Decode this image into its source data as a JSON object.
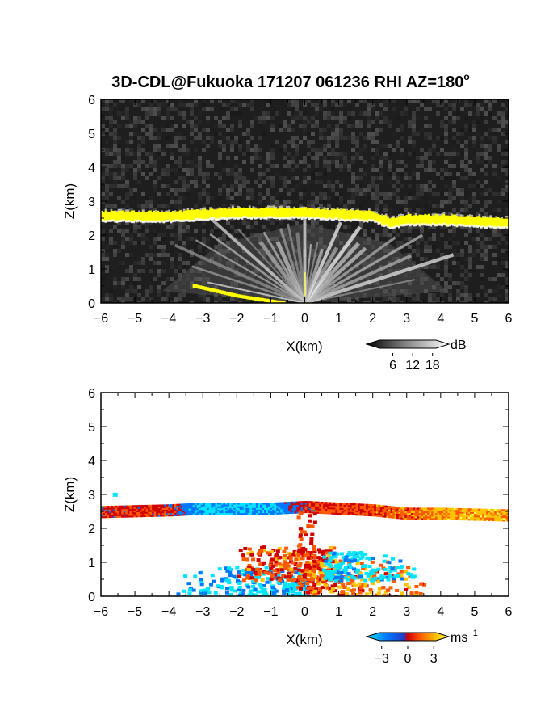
{
  "title_main": "3D-CDL@Fukuoka 171207 061236 RHI AZ=180",
  "title_sup": "o",
  "chart_data": [
    {
      "type": "heatmap",
      "quantity": "intensity",
      "xlabel": "X(km)",
      "ylabel": "Z(km)",
      "xlim": [
        -6,
        6
      ],
      "ylim": [
        0,
        6
      ],
      "x_ticks": [
        "−6",
        "−5",
        "−4",
        "−3",
        "−2",
        "−1",
        "0",
        "1",
        "2",
        "3",
        "4",
        "5",
        "6"
      ],
      "y_ticks": [
        "0",
        "1",
        "2",
        "3",
        "4",
        "5",
        "6"
      ],
      "colorbar": {
        "unit": "dB",
        "ticks": [
          "6",
          "12",
          "18"
        ],
        "range": [
          0,
          21
        ]
      },
      "features": {
        "cloud_base_layer_km": [
          [
            -6,
            2.55
          ],
          [
            -5,
            2.55
          ],
          [
            -4,
            2.55
          ],
          [
            -3,
            2.6
          ],
          [
            -2,
            2.65
          ],
          [
            -1,
            2.65
          ],
          [
            0,
            2.65
          ],
          [
            1,
            2.6
          ],
          [
            2,
            2.55
          ],
          [
            2.5,
            2.35
          ],
          [
            3,
            2.45
          ],
          [
            4,
            2.45
          ],
          [
            5,
            2.4
          ],
          [
            6,
            2.35
          ]
        ],
        "ground_echo_km": [
          [
            -3.3,
            0.5
          ],
          [
            -2,
            0.2
          ],
          [
            -0.7,
            0.0
          ]
        ]
      }
    },
    {
      "type": "heatmap",
      "quantity": "doppler velocity",
      "xlabel": "X(km)",
      "ylabel": "Z(km)",
      "xlim": [
        -6,
        6
      ],
      "ylim": [
        0,
        6
      ],
      "x_ticks": [
        "−6",
        "−5",
        "−4",
        "−3",
        "−2",
        "−1",
        "0",
        "1",
        "2",
        "3",
        "4",
        "5",
        "6"
      ],
      "y_ticks": [
        "0",
        "1",
        "2",
        "3",
        "4",
        "5",
        "6"
      ],
      "colorbar": {
        "unit": "ms",
        "unit_sup": "−1",
        "ticks": [
          "−3",
          "0",
          "3"
        ],
        "range": [
          -4,
          4
        ]
      },
      "features": {
        "cloud_layer_km": [
          [
            -6,
            2.5,
            1
          ],
          [
            -4,
            2.55,
            1
          ],
          [
            -3,
            2.6,
            -2.5
          ],
          [
            -1,
            2.6,
            -2
          ],
          [
            0,
            2.65,
            1
          ],
          [
            1,
            2.6,
            1.5
          ],
          [
            2,
            2.55,
            1.5
          ],
          [
            3,
            2.45,
            2
          ],
          [
            4,
            2.45,
            3
          ],
          [
            6,
            2.4,
            3
          ]
        ]
      }
    }
  ],
  "colors": {
    "grey_low": "#1e1e1e",
    "grey_high": "#ffffff",
    "yellow": "#ffff00",
    "doppler": [
      "#00e5ff",
      "#0077ff",
      "#1f3cc8",
      "#d00000",
      "#ff5a00",
      "#ffc400",
      "#ffff60"
    ]
  }
}
